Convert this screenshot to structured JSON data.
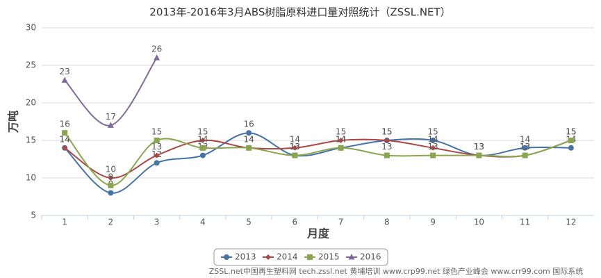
{
  "chart_data": {
    "type": "line",
    "title": "2013年-2016年3月ABS树脂原料进口量对照统计（ZSSL.NET）",
    "y_label": "万吨",
    "x_label": "月度",
    "categories": [
      "1",
      "2",
      "3",
      "4",
      "5",
      "6",
      "7",
      "8",
      "9",
      "10",
      "11",
      "12"
    ],
    "series": [
      {
        "name": "2013",
        "color": "#4572a7",
        "values": [
          14,
          8,
          12,
          13,
          16,
          13,
          14,
          15,
          15,
          13,
          14,
          14
        ]
      },
      {
        "name": "2014",
        "color": "#aa4643",
        "values": [
          14,
          10,
          13,
          15,
          14,
          14,
          15,
          15,
          14,
          13,
          13,
          15
        ]
      },
      {
        "name": "2015",
        "color": "#89a54e",
        "values": [
          16,
          9,
          15,
          14,
          14,
          13,
          14,
          13,
          13,
          13,
          13,
          15
        ]
      },
      {
        "name": "2016",
        "color": "#80699b",
        "values": [
          23,
          17,
          26,
          null,
          null,
          null,
          null,
          null,
          null,
          null,
          null,
          null
        ]
      }
    ],
    "ylim": [
      5,
      30
    ],
    "yticks": [
      5,
      10,
      15,
      20,
      25,
      30
    ],
    "grid": true,
    "legend": "bottom",
    "credit": "ZSSL.net中国再生塑料网 tech.zssl.net 黄埔培训 www.crp99.net 绿色产业峰会 www.crr99.com 国际系统"
  }
}
